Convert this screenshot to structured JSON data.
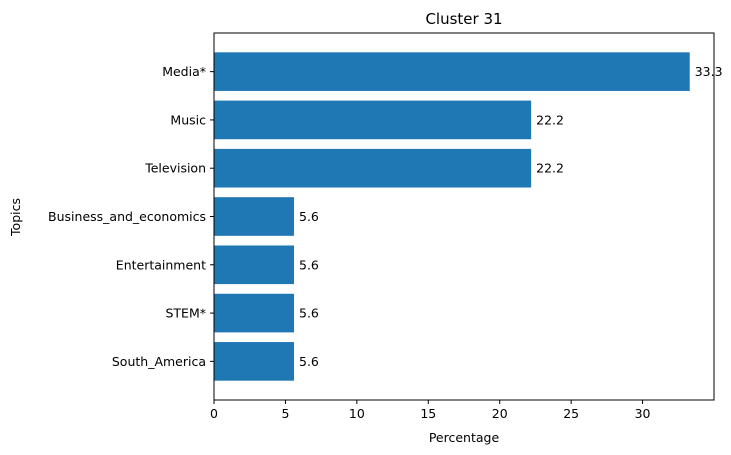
{
  "chart_data": {
    "type": "bar",
    "orientation": "horizontal",
    "title": "Cluster 31",
    "xlabel": "Percentage",
    "ylabel": "Topics",
    "categories": [
      "Media*",
      "Music",
      "Television",
      "Business_and_economics",
      "Entertainment",
      "STEM*",
      "South_America"
    ],
    "values": [
      33.3,
      22.2,
      22.2,
      5.6,
      5.6,
      5.6,
      5.6
    ],
    "value_labels": [
      "33.3",
      "22.2",
      "22.2",
      "5.6",
      "5.6",
      "5.6",
      "5.6"
    ],
    "xlim": [
      0,
      35
    ],
    "xticks": [
      0,
      5,
      10,
      15,
      20,
      25,
      30
    ],
    "grid": false,
    "legend": "none",
    "bar_color": "#1f77b4"
  }
}
